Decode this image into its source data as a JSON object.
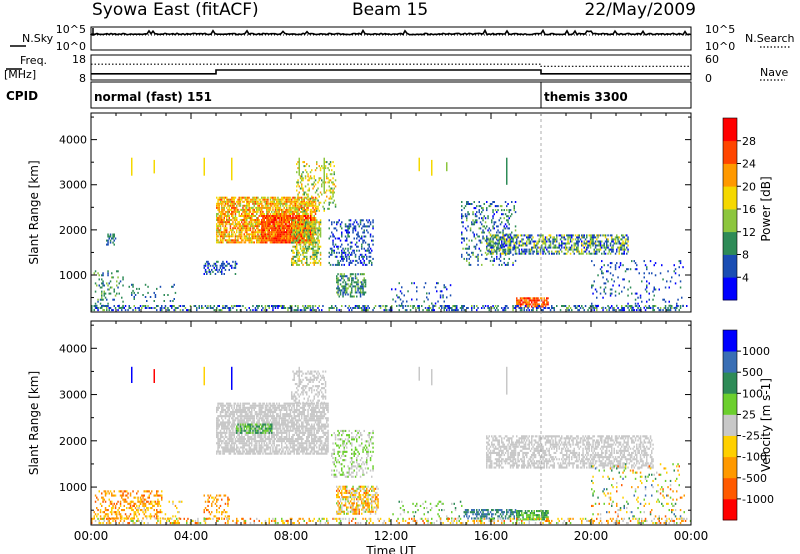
{
  "header": {
    "station": "Syowa East (fitACF)",
    "beam": "Beam 15",
    "date": "22/May/2009"
  },
  "chart_data": [
    {
      "type": "line",
      "name": "top-strip",
      "left_labels": [
        "N.Sky",
        "Freq.",
        "[MHz]",
        "CPID"
      ],
      "right_labels": [
        "N.Search",
        "Nave"
      ],
      "nsky_ticks": [
        "10^5",
        "10^0"
      ],
      "nsearch_ticks": [
        "10^5",
        "10^0"
      ],
      "freq_ticks": [
        "18",
        "8"
      ],
      "nave_ticks": [
        "60",
        "0"
      ],
      "freq_series": {
        "x_hours": [
          0,
          5,
          5,
          18,
          18,
          24
        ],
        "y": [
          10.5,
          10.5,
          12.0,
          12.0,
          10.5,
          10.5
        ]
      },
      "nave_series": {
        "x_hours": [
          0,
          18,
          18,
          24
        ],
        "y": [
          38,
          38,
          33,
          33
        ]
      },
      "cpid_segments": [
        {
          "label": "normal (fast) 151",
          "start_hour": 0,
          "end_hour": 18
        },
        {
          "label": "themis 3300",
          "start_hour": 18,
          "end_hour": 24
        }
      ]
    },
    {
      "type": "heatmap",
      "name": "power",
      "ylabel": "Slant Range [km]",
      "ylim": [
        180,
        4590
      ],
      "xlim_hours": [
        0,
        24
      ],
      "y_ticks": [
        1000,
        2000,
        3000,
        4000
      ],
      "colorbar_label": "Power [dB]",
      "colorbar_ticks": [
        "28",
        "24",
        "20",
        "16",
        "12",
        "8",
        "4"
      ],
      "colorbar_colors": [
        "#0000ff",
        "#1a4db3",
        "#2e8b57",
        "#8cc63e",
        "#f5d800",
        "#ff9900",
        "#ff4500",
        "#ff0000"
      ],
      "regions": [
        {
          "t0": 0.1,
          "t1": 1.3,
          "r0": 250,
          "r1": 1100,
          "density": 0.18,
          "c": [
            1,
            3
          ]
        },
        {
          "t0": 0.6,
          "t1": 1.0,
          "r0": 1650,
          "r1": 1900,
          "density": 0.45,
          "c": [
            1,
            2
          ]
        },
        {
          "t0": 1.5,
          "t1": 3.5,
          "r0": 400,
          "r1": 800,
          "density": 0.1,
          "c": [
            1,
            2
          ]
        },
        {
          "t0": 4.5,
          "t1": 5.8,
          "r0": 1000,
          "r1": 1300,
          "density": 0.35,
          "c": [
            0,
            2
          ]
        },
        {
          "t0": 5.0,
          "t1": 9.0,
          "r0": 1700,
          "r1": 2700,
          "density": 0.75,
          "c": [
            3,
            6
          ]
        },
        {
          "t0": 6.8,
          "t1": 8.8,
          "r0": 1700,
          "r1": 2300,
          "density": 0.85,
          "c": [
            5,
            7
          ]
        },
        {
          "t0": 8.0,
          "t1": 9.2,
          "r0": 1200,
          "r1": 2200,
          "density": 0.55,
          "c": [
            2,
            5
          ]
        },
        {
          "t0": 8.2,
          "t1": 9.8,
          "r0": 2400,
          "r1": 3500,
          "density": 0.25,
          "c": [
            2,
            5
          ]
        },
        {
          "t0": 9.5,
          "t1": 11.3,
          "r0": 1200,
          "r1": 2200,
          "density": 0.3,
          "c": [
            0,
            2
          ]
        },
        {
          "t0": 9.8,
          "t1": 11.0,
          "r0": 500,
          "r1": 1000,
          "density": 0.55,
          "c": [
            1,
            3
          ]
        },
        {
          "t0": 12.0,
          "t1": 14.5,
          "r0": 300,
          "r1": 800,
          "density": 0.1,
          "c": [
            0,
            2
          ]
        },
        {
          "t0": 14.8,
          "t1": 17.0,
          "r0": 1200,
          "r1": 2600,
          "density": 0.22,
          "c": [
            0,
            3
          ]
        },
        {
          "t0": 15.8,
          "t1": 21.5,
          "r0": 1450,
          "r1": 1900,
          "density": 0.55,
          "c": [
            0,
            4
          ]
        },
        {
          "t0": 17.0,
          "t1": 18.3,
          "r0": 280,
          "r1": 500,
          "density": 0.8,
          "c": [
            5,
            7
          ]
        },
        {
          "t0": 20.0,
          "t1": 23.7,
          "r0": 250,
          "r1": 1300,
          "density": 0.1,
          "c": [
            0,
            2
          ]
        },
        {
          "t0": 0.0,
          "t1": 24.0,
          "r0": 200,
          "r1": 300,
          "density": 0.35,
          "c": [
            0,
            3
          ]
        }
      ],
      "stripes": [
        {
          "t": 1.6,
          "r0": 3200,
          "r1": 3600,
          "c": 4
        },
        {
          "t": 2.5,
          "r0": 3250,
          "r1": 3550,
          "c": 4
        },
        {
          "t": 4.5,
          "r0": 3200,
          "r1": 3600,
          "c": 4
        },
        {
          "t": 5.6,
          "r0": 3100,
          "r1": 3600,
          "c": 4
        },
        {
          "t": 8.3,
          "r0": 3200,
          "r1": 3600,
          "c": 3
        },
        {
          "t": 9.3,
          "r0": 2800,
          "r1": 3600,
          "c": 3
        },
        {
          "t": 13.1,
          "r0": 3300,
          "r1": 3600,
          "c": 4
        },
        {
          "t": 13.6,
          "r0": 3200,
          "r1": 3550,
          "c": 4
        },
        {
          "t": 14.2,
          "r0": 3300,
          "r1": 3500,
          "c": 3
        },
        {
          "t": 16.6,
          "r0": 3000,
          "r1": 3600,
          "c": 2
        }
      ]
    },
    {
      "type": "heatmap",
      "name": "velocity",
      "ylabel": "Slant Range [km]",
      "ylim": [
        180,
        4590
      ],
      "xlim_hours": [
        0,
        24
      ],
      "y_ticks": [
        1000,
        2000,
        3000,
        4000
      ],
      "xlabel": "Time UT",
      "x_ticks": [
        "00:00",
        "04:00",
        "08:00",
        "12:00",
        "16:00",
        "20:00",
        "00:00"
      ],
      "colorbar_label": "Velocity [m s-1]",
      "colorbar_ticks": [
        "1000",
        "500",
        "100",
        "25",
        "-25",
        "-100",
        "-500",
        "-1000"
      ],
      "colorbar_colors": [
        "#ff0000",
        "#ff5a00",
        "#ff9900",
        "#ffd000",
        "#c8c8c8",
        "#6ccf2e",
        "#2e8b57",
        "#3a6fb5",
        "#0000ff"
      ],
      "regions": [
        {
          "t0": 0.1,
          "t1": 2.8,
          "r0": 300,
          "r1": 900,
          "density": 0.35,
          "c": [
            1,
            3
          ]
        },
        {
          "t0": 1.6,
          "t1": 3.6,
          "r0": 300,
          "r1": 700,
          "density": 0.12,
          "c": [
            2,
            4
          ]
        },
        {
          "t0": 4.5,
          "t1": 5.5,
          "r0": 300,
          "r1": 800,
          "density": 0.25,
          "c": [
            1,
            3
          ]
        },
        {
          "t0": 5.0,
          "t1": 9.5,
          "r0": 1700,
          "r1": 2800,
          "density": 0.7,
          "c": [
            4,
            4
          ]
        },
        {
          "t0": 5.8,
          "t1": 7.2,
          "r0": 2150,
          "r1": 2350,
          "density": 0.6,
          "c": [
            5,
            6
          ]
        },
        {
          "t0": 8.0,
          "t1": 9.4,
          "r0": 2800,
          "r1": 3500,
          "density": 0.35,
          "c": [
            4,
            4
          ]
        },
        {
          "t0": 9.6,
          "t1": 11.3,
          "r0": 1200,
          "r1": 2200,
          "density": 0.3,
          "c": [
            4,
            5
          ]
        },
        {
          "t0": 9.8,
          "t1": 11.5,
          "r0": 400,
          "r1": 1000,
          "density": 0.55,
          "c": [
            1,
            5
          ]
        },
        {
          "t0": 12.0,
          "t1": 15.0,
          "r0": 300,
          "r1": 700,
          "density": 0.1,
          "c": [
            4,
            6
          ]
        },
        {
          "t0": 14.9,
          "t1": 17.0,
          "r0": 300,
          "r1": 500,
          "density": 0.55,
          "c": [
            6,
            7
          ]
        },
        {
          "t0": 15.8,
          "t1": 22.5,
          "r0": 1400,
          "r1": 2100,
          "density": 0.55,
          "c": [
            4,
            4
          ]
        },
        {
          "t0": 17.0,
          "t1": 18.3,
          "r0": 280,
          "r1": 500,
          "density": 0.8,
          "c": [
            5,
            6
          ]
        },
        {
          "t0": 20.0,
          "t1": 23.8,
          "r0": 300,
          "r1": 1500,
          "density": 0.1,
          "c": [
            1,
            7
          ]
        },
        {
          "t0": 0.0,
          "t1": 24.0,
          "r0": 200,
          "r1": 300,
          "density": 0.3,
          "c": [
            1,
            5
          ]
        }
      ],
      "stripes": [
        {
          "t": 1.6,
          "r0": 3250,
          "r1": 3600,
          "c": 8
        },
        {
          "t": 2.5,
          "r0": 3250,
          "r1": 3550,
          "c": 0
        },
        {
          "t": 4.5,
          "r0": 3200,
          "r1": 3600,
          "c": 3
        },
        {
          "t": 5.6,
          "r0": 3100,
          "r1": 3600,
          "c": 8
        },
        {
          "t": 8.3,
          "r0": 3200,
          "r1": 3600,
          "c": 4
        },
        {
          "t": 13.1,
          "r0": 3300,
          "r1": 3600,
          "c": 4
        },
        {
          "t": 13.6,
          "r0": 3200,
          "r1": 3550,
          "c": 4
        },
        {
          "t": 16.6,
          "r0": 3000,
          "r1": 3600,
          "c": 4
        }
      ]
    }
  ]
}
